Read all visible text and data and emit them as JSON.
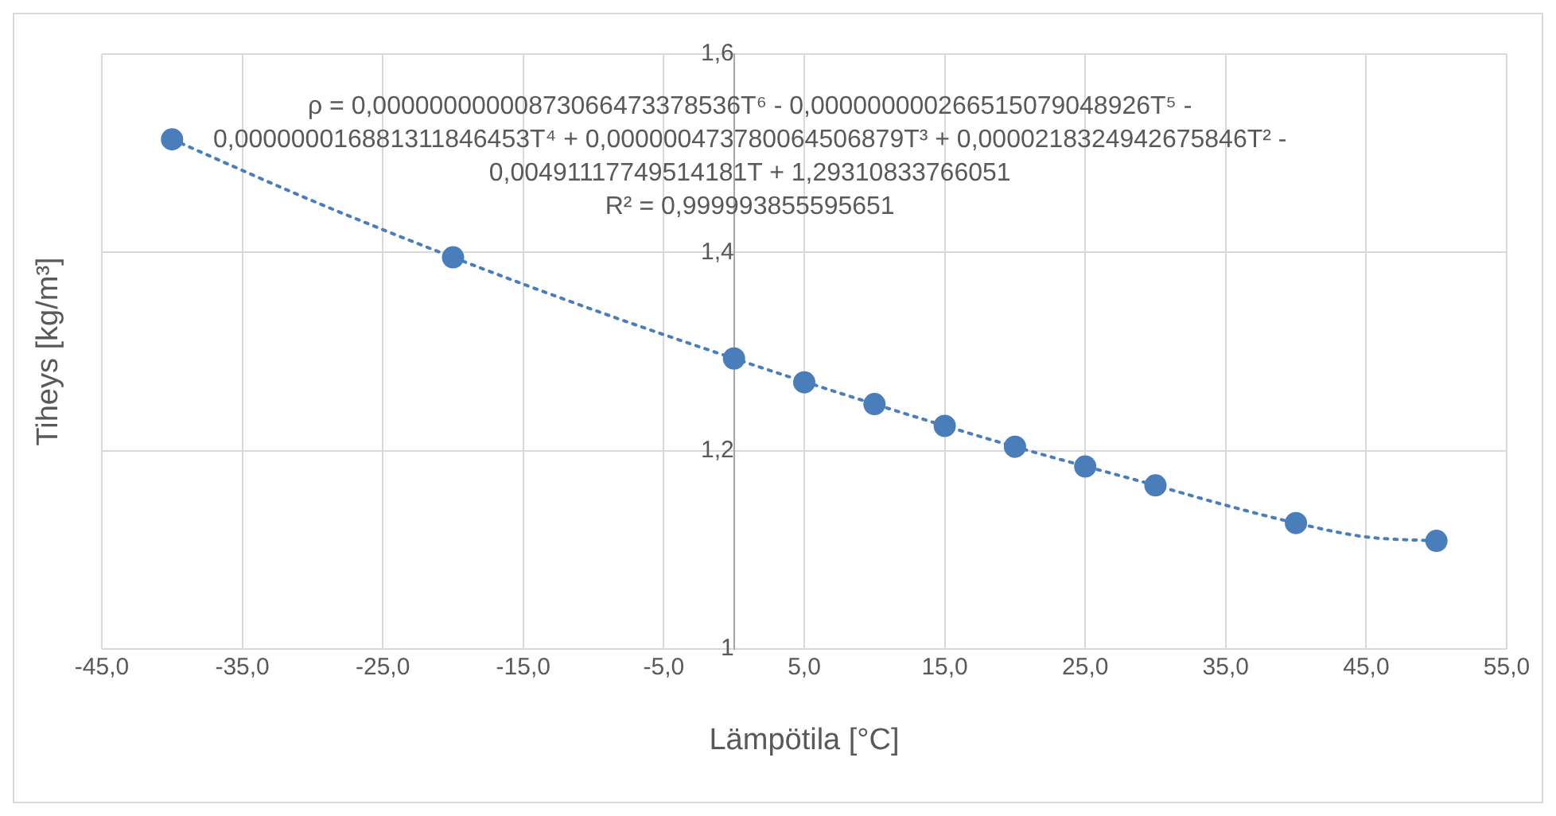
{
  "chart_data": {
    "type": "scatter",
    "xlabel": "Lämpötila [°C]",
    "ylabel": "Tiheys [kg/m³]",
    "annotations": [
      "ρ = 0,00000000000873066473378536T⁶ - 0,000000000266515079048926T⁵ - 0,000000016881311846453T⁴ + 0,000000473780064506879T³ + 0,0000218324942675846T² - 0,00491117749514181T + 1,29310833766051",
      "R² = 0,999993855595651"
    ],
    "series": [
      {
        "color": "#4a7ebb",
        "marker": "circle",
        "x": [
          -40,
          -20,
          0,
          5,
          10,
          15,
          20,
          25,
          30,
          40,
          50
        ],
        "values": [
          1.514,
          1.395,
          1.293,
          1.269,
          1.247,
          1.225,
          1.204,
          1.184,
          1.165,
          1.127,
          1.109
        ]
      },
      {
        "type": "line",
        "color": "#4a7ebb",
        "marker": "none",
        "line_style": "dotted",
        "x": [
          -40,
          -30,
          -20,
          -10,
          0,
          10,
          20,
          30,
          35,
          40,
          45,
          50
        ],
        "values": [
          1.514,
          1.452,
          1.395,
          1.342,
          1.293,
          1.247,
          1.204,
          1.165,
          1.145,
          1.127,
          1.113,
          1.109
        ]
      }
    ],
    "xlim": [
      -45,
      55
    ],
    "xticks": [
      {
        "value": -45,
        "label": "-45,0"
      },
      {
        "value": -35,
        "label": "-35,0"
      },
      {
        "value": -25,
        "label": "-25,0"
      },
      {
        "value": -15,
        "label": "-15,0"
      },
      {
        "value": -5,
        "label": "-5,0"
      },
      {
        "value": 5,
        "label": "5,0"
      },
      {
        "value": 15,
        "label": "15,0"
      },
      {
        "value": 25,
        "label": "25,0"
      },
      {
        "value": 35,
        "label": "35,0"
      },
      {
        "value": 45,
        "label": "45,0"
      },
      {
        "value": 55,
        "label": "55,0"
      }
    ],
    "ylim": [
      1,
      1.6
    ],
    "yticks": [
      1,
      {
        "value": 1.2,
        "label": "1,2"
      },
      {
        "value": 1.4,
        "label": "1,4"
      },
      {
        "value": 1.6,
        "label": "1,6"
      }
    ],
    "grid": true,
    "legend": false
  }
}
